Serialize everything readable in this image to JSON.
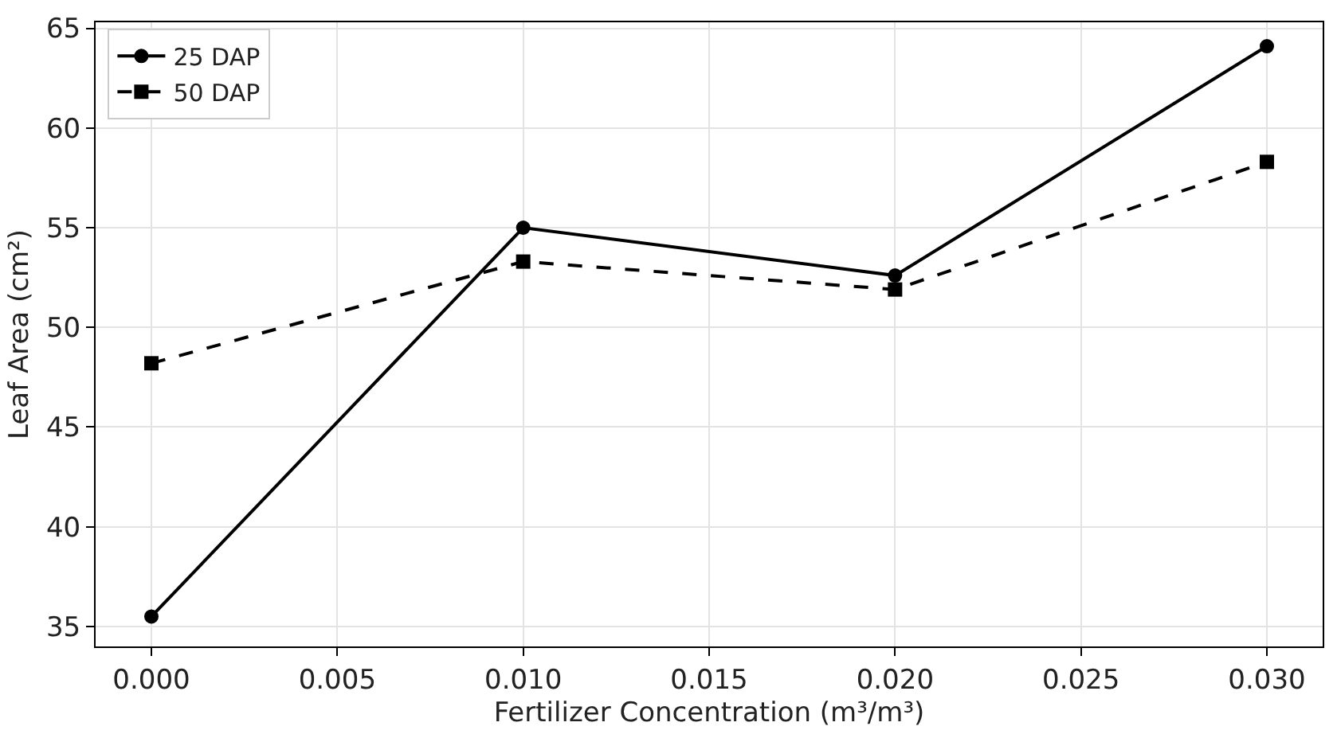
{
  "chart_data": {
    "type": "line",
    "xlabel": "Fertilizer Concentration (m³/m³)",
    "ylabel": "Leaf Area (cm²)",
    "x": [
      0.0,
      0.01,
      0.02,
      0.03
    ],
    "series": [
      {
        "name": "25 DAP",
        "color": "#000000",
        "values": [
          35.5,
          55.0,
          52.6,
          64.1
        ],
        "marker": "circle",
        "line_style": "solid"
      },
      {
        "name": "50 DAP",
        "color": "#000000",
        "values": [
          48.2,
          53.3,
          51.9,
          58.3
        ],
        "marker": "square",
        "line_style": "dashed"
      }
    ],
    "xlim": [
      -0.0015,
      0.0315
    ],
    "xticks": [
      {
        "value": 0,
        "label": "0.000"
      },
      {
        "value": 0.005,
        "label": "0.005"
      },
      {
        "value": 0.01,
        "label": "0.010"
      },
      {
        "value": 0.015,
        "label": "0.015"
      },
      {
        "value": 0.02,
        "label": "0.020"
      },
      {
        "value": 0.025,
        "label": "0.025"
      },
      {
        "value": 0.03,
        "label": "0.030"
      }
    ],
    "ylim": [
      34,
      65.3
    ],
    "yticks": [
      35,
      40,
      45,
      50,
      55,
      60,
      65
    ],
    "grid": true,
    "legend": "top left"
  }
}
